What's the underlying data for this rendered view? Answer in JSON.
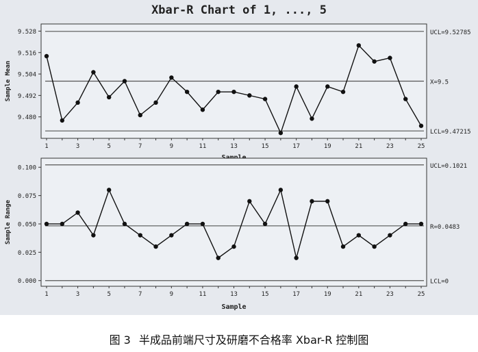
{
  "figure": {
    "title": "Xbar-R Chart of 1, ..., 5"
  },
  "caption": {
    "label": "图 3",
    "text": "半成品前端尺寸及研磨不合格率 Xbar-R 控制图"
  },
  "chart_data": [
    {
      "type": "line",
      "title": "Xbar-R Chart of 1, ..., 5",
      "xlabel": "Sample",
      "ylabel": "Sample Mean",
      "x": [
        1,
        2,
        3,
        4,
        5,
        6,
        7,
        8,
        9,
        10,
        11,
        12,
        13,
        14,
        15,
        16,
        17,
        18,
        19,
        20,
        21,
        22,
        23,
        24,
        25
      ],
      "values": [
        9.514,
        9.478,
        9.488,
        9.505,
        9.491,
        9.5,
        9.481,
        9.488,
        9.502,
        9.494,
        9.484,
        9.494,
        9.494,
        9.492,
        9.49,
        9.471,
        9.497,
        9.479,
        9.497,
        9.494,
        9.52,
        9.511,
        9.513,
        9.49,
        9.475
      ],
      "xticks": [
        "1",
        "3",
        "5",
        "7",
        "9",
        "11",
        "13",
        "15",
        "17",
        "19",
        "21",
        "23",
        "25"
      ],
      "yticks": [
        "9.528",
        "9.516",
        "9.504",
        "9.492",
        "9.480"
      ],
      "ylim": [
        9.468,
        9.532
      ],
      "control_limits": {
        "ucl": 9.52785,
        "center": 9.5,
        "lcl": 9.47215
      },
      "limit_labels": {
        "ucl": "UCL=9.52785",
        "center": "X=9.5",
        "lcl": "LCL=9.47215"
      },
      "grid": false
    },
    {
      "type": "line",
      "xlabel": "Sample",
      "ylabel": "Sample Range",
      "x": [
        1,
        2,
        3,
        4,
        5,
        6,
        7,
        8,
        9,
        10,
        11,
        12,
        13,
        14,
        15,
        16,
        17,
        18,
        19,
        20,
        21,
        22,
        23,
        24,
        25
      ],
      "values": [
        0.05,
        0.05,
        0.06,
        0.04,
        0.08,
        0.05,
        0.04,
        0.03,
        0.04,
        0.05,
        0.05,
        0.02,
        0.03,
        0.07,
        0.05,
        0.08,
        0.02,
        0.07,
        0.07,
        0.03,
        0.04,
        0.03,
        0.04,
        0.05,
        0.05
      ],
      "xticks": [
        "1",
        "3",
        "5",
        "7",
        "9",
        "11",
        "13",
        "15",
        "17",
        "19",
        "21",
        "23",
        "25"
      ],
      "yticks": [
        "0.100",
        "0.075",
        "0.050",
        "0.025",
        "0.000"
      ],
      "ylim": [
        -0.005,
        0.108
      ],
      "control_limits": {
        "ucl": 0.1021,
        "center": 0.0483,
        "lcl": 0
      },
      "limit_labels": {
        "ucl": "UCL=0.1021",
        "center": "R=0.0483",
        "lcl": "LCL=0"
      },
      "grid": false
    }
  ]
}
